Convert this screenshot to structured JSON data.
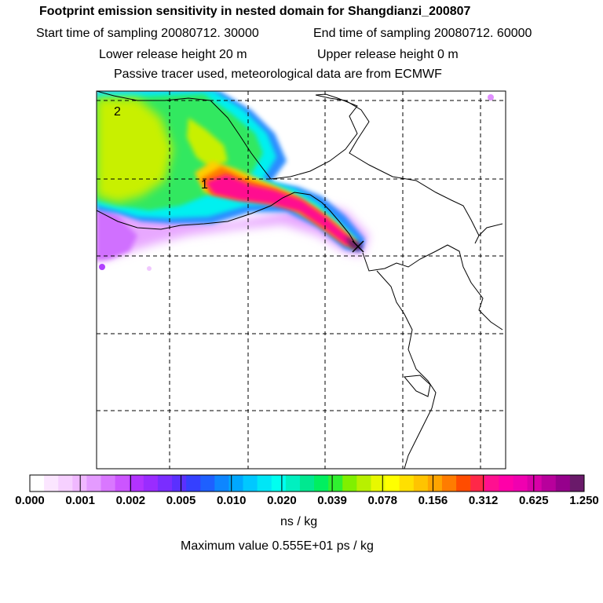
{
  "header": {
    "title": "Footprint emission sensitivity in nested domain for Shangdianzi_200807",
    "start_time": "Start time of sampling 20080712. 30000",
    "end_time": "End time of sampling 20080712. 60000",
    "lower_release": "Lower release height   20 m",
    "upper_release": "Upper release height    0 m",
    "tracer_note": "Passive tracer used, meteorological data are from ECMWF"
  },
  "map": {
    "labels": [
      "2",
      "1"
    ],
    "release_marker": "release-site-cross"
  },
  "colorbar": {
    "ticks": [
      "0.000",
      "0.001",
      "0.002",
      "0.005",
      "0.010",
      "0.020",
      "0.039",
      "0.078",
      "0.156",
      "0.312",
      "0.625",
      "1.250"
    ],
    "colors": [
      "#ffffff",
      "#fbe6ff",
      "#f6d0ff",
      "#f0b8ff",
      "#e49bff",
      "#d977ff",
      "#cc55ff",
      "#b233ff",
      "#9a2cff",
      "#7a2dff",
      "#5a30ff",
      "#3540ff",
      "#1e60ff",
      "#0e86ff",
      "#00a8ff",
      "#00c8ff",
      "#00e6f6",
      "#00fff0",
      "#00f0c0",
      "#00e890",
      "#00ef60",
      "#30f030",
      "#80f000",
      "#b8f000",
      "#e8f800",
      "#ffff00",
      "#ffe000",
      "#ffc400",
      "#ffa400",
      "#ff7c00",
      "#ff4c00",
      "#ff2848",
      "#ff1090",
      "#ff00a8",
      "#f000b0",
      "#d800a8",
      "#b8009c",
      "#96008c",
      "#6a1a6a"
    ],
    "unit": "ns / kg",
    "max_value": "Maximum value  0.555E+01 ps / kg"
  }
}
